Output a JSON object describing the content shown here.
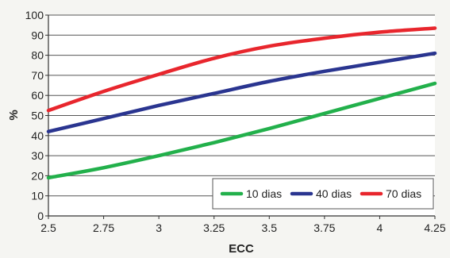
{
  "chart_data": {
    "type": "line",
    "xlabel": "ECC",
    "ylabel": "%",
    "xlim": [
      2.5,
      4.25
    ],
    "ylim": [
      0,
      100
    ],
    "x_ticks": [
      "2.5",
      "2.75",
      "3",
      "3.25",
      "3.5",
      "3.75",
      "4",
      "4.25"
    ],
    "y_ticks": [
      "0",
      "10",
      "20",
      "30",
      "40",
      "50",
      "60",
      "70",
      "80",
      "90",
      "100"
    ],
    "grid": "horizontal",
    "legend_position": "bottom-right",
    "x": [
      2.5,
      2.75,
      3,
      3.25,
      3.5,
      3.75,
      4,
      4.25
    ],
    "series": [
      {
        "name": "10 dias",
        "color": "#22b04b",
        "values": [
          19,
          24,
          30,
          36.5,
          43.5,
          51,
          58.5,
          66
        ]
      },
      {
        "name": "40 dias",
        "color": "#2a3590",
        "values": [
          42,
          48.5,
          55,
          61,
          67,
          72,
          76.5,
          81
        ]
      },
      {
        "name": "70 dias",
        "color": "#e8262d",
        "values": [
          52.5,
          62,
          70.5,
          78.5,
          84.5,
          88.5,
          91.5,
          93.5
        ]
      }
    ]
  }
}
